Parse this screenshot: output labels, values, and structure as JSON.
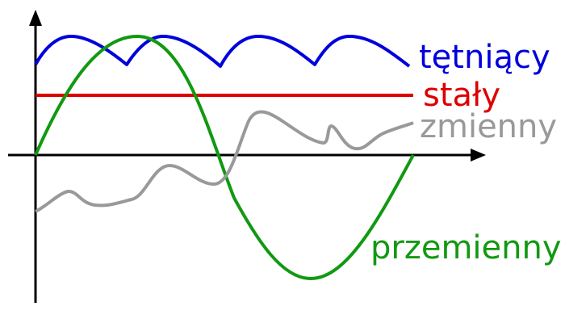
{
  "labels": {
    "pulsating": "tętniący",
    "constant": "stały",
    "variable": "zmienny",
    "alternating": "przemienny"
  },
  "colors": {
    "pulsating": "#0000dd",
    "constant": "#dd0000",
    "variable": "#999999",
    "alternating": "#119911",
    "axes": "#000000"
  }
}
